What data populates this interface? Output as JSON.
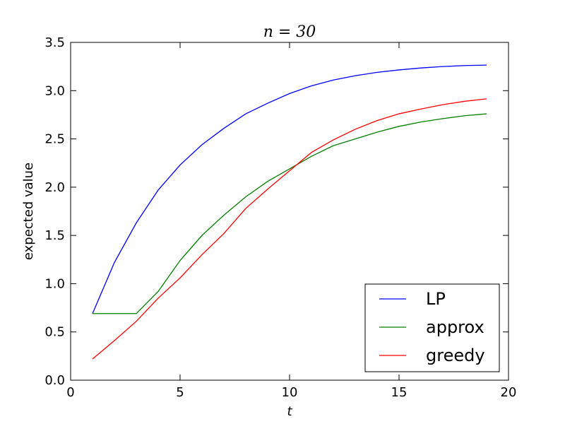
{
  "chart_data": {
    "type": "line",
    "title": "n = 30",
    "xlabel": "t",
    "ylabel": "expected value",
    "xlim": [
      0,
      20
    ],
    "ylim": [
      0.0,
      3.5
    ],
    "xticks": [
      0,
      5,
      10,
      15,
      20
    ],
    "xtick_labels": [
      "0",
      "5",
      "10",
      "15",
      "20"
    ],
    "yticks": [
      0.0,
      0.5,
      1.0,
      1.5,
      2.0,
      2.5,
      3.0,
      3.5
    ],
    "ytick_labels": [
      "0.0",
      "0.5",
      "1.0",
      "1.5",
      "2.0",
      "2.5",
      "3.0",
      "3.5"
    ],
    "grid": false,
    "legend_position": "bottom-right",
    "x": [
      1,
      2,
      3,
      4,
      5,
      6,
      7,
      8,
      9,
      10,
      11,
      12,
      13,
      14,
      15,
      16,
      17,
      18,
      19
    ],
    "series": [
      {
        "name": "LP",
        "color": "#0000ff",
        "values": [
          0.69,
          1.22,
          1.63,
          1.97,
          2.23,
          2.44,
          2.61,
          2.76,
          2.87,
          2.97,
          3.05,
          3.11,
          3.155,
          3.19,
          3.215,
          3.235,
          3.25,
          3.26,
          3.265
        ]
      },
      {
        "name": "approx",
        "color": "#008000",
        "values": [
          0.69,
          0.69,
          0.69,
          0.92,
          1.24,
          1.5,
          1.71,
          1.9,
          2.06,
          2.19,
          2.32,
          2.43,
          2.5,
          2.57,
          2.63,
          2.675,
          2.71,
          2.74,
          2.76
        ]
      },
      {
        "name": "greedy",
        "color": "#ff0000",
        "values": [
          0.22,
          0.41,
          0.61,
          0.85,
          1.06,
          1.3,
          1.52,
          1.78,
          1.98,
          2.17,
          2.36,
          2.49,
          2.6,
          2.69,
          2.76,
          2.81,
          2.855,
          2.89,
          2.915
        ]
      }
    ]
  }
}
